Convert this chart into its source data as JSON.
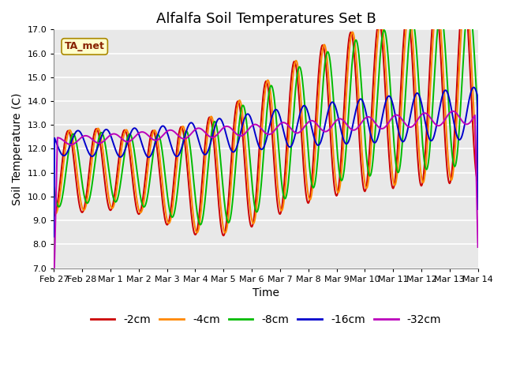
{
  "title": "Alfalfa Soil Temperatures Set B",
  "xlabel": "Time",
  "ylabel": "Soil Temperature (C)",
  "ylim": [
    7.0,
    17.0
  ],
  "yticks": [
    7.0,
    8.0,
    9.0,
    10.0,
    11.0,
    12.0,
    13.0,
    14.0,
    15.0,
    16.0,
    17.0
  ],
  "xtick_labels": [
    "Feb 27",
    "Feb 28",
    "Mar 1",
    "Mar 2",
    "Mar 3",
    "Mar 4",
    "Mar 5",
    "Mar 6",
    "Mar 7",
    "Mar 8",
    "Mar 9",
    "Mar 10",
    "Mar 11",
    "Mar 12",
    "Mar 13",
    "Mar 14"
  ],
  "series_colors": [
    "#cc0000",
    "#ff8800",
    "#00bb00",
    "#0000cc",
    "#bb00bb"
  ],
  "series_labels": [
    "-2cm",
    "-4cm",
    "-8cm",
    "-16cm",
    "-32cm"
  ],
  "ta_met_label": "TA_met",
  "ta_met_text_color": "#882200",
  "ta_met_bg": "#ffffcc",
  "ta_met_edge": "#aa8800",
  "plot_bg": "#e8e8e8",
  "fig_bg": "#ffffff",
  "title_fontsize": 13,
  "axis_label_fontsize": 10,
  "tick_fontsize": 8,
  "legend_fontsize": 10
}
